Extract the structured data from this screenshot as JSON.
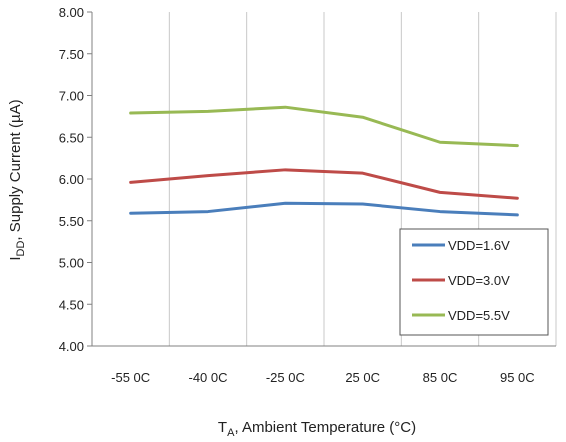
{
  "chart_data": {
    "type": "line",
    "title": "",
    "categories": [
      "-55 0C",
      "-40 0C",
      "-25 0C",
      "25 0C",
      "85 0C",
      "95 0C"
    ],
    "xlabel": {
      "main": "T",
      "sub": "A",
      "rest": ", Ambient Temperature (°C)"
    },
    "ylabel": {
      "main": "I",
      "sub": "DD",
      "rest": ", Supply Current (µA)"
    },
    "ylim": [
      4.0,
      8.0
    ],
    "yticks": [
      "4.00",
      "4.50",
      "5.00",
      "5.50",
      "6.00",
      "6.50",
      "7.00",
      "7.50",
      "8.00"
    ],
    "grid": "vertical",
    "legend_position": "bottom-right",
    "series": [
      {
        "name": "VDD=1.6V",
        "color": "#4a7ebb",
        "values": [
          5.59,
          5.61,
          5.71,
          5.7,
          5.61,
          5.57
        ]
      },
      {
        "name": "VDD=3.0V",
        "color": "#be4b48",
        "values": [
          5.96,
          6.04,
          6.11,
          6.07,
          5.84,
          5.77
        ]
      },
      {
        "name": "VDD=5.5V",
        "color": "#98b954",
        "values": [
          6.79,
          6.81,
          6.86,
          6.74,
          6.44,
          6.4
        ]
      }
    ]
  }
}
